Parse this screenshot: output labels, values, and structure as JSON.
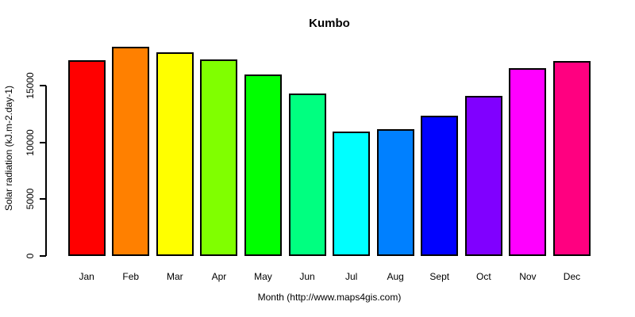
{
  "title": "Kumbo",
  "chart_data": {
    "type": "bar",
    "title": "Kumbo",
    "xlabel": "Month (http://www.maps4gis.com)",
    "ylabel": "Solar radiation (kJ.m-2.day-1)",
    "categories": [
      "Jan",
      "Feb",
      "Mar",
      "Apr",
      "May",
      "Jun",
      "Jul",
      "Aug",
      "Sept",
      "Oct",
      "Nov",
      "Dec"
    ],
    "values": [
      17250,
      18450,
      17950,
      17300,
      15950,
      14300,
      10950,
      11150,
      12350,
      14100,
      16550,
      17150
    ],
    "bar_colors": [
      "#FF0000",
      "#FF8000",
      "#FFFF00",
      "#80FF00",
      "#00FF00",
      "#00FF80",
      "#00FFFF",
      "#0080FF",
      "#0000FF",
      "#8000FF",
      "#FF00FF",
      "#FF0080"
    ],
    "bar_border_color": "#000000",
    "axis_color": "#000000",
    "background": "#FFFFFF",
    "ylim": [
      0,
      19050
    ],
    "yticks": [
      0,
      5000,
      10000,
      15000
    ],
    "grid": false,
    "legend": "none"
  }
}
